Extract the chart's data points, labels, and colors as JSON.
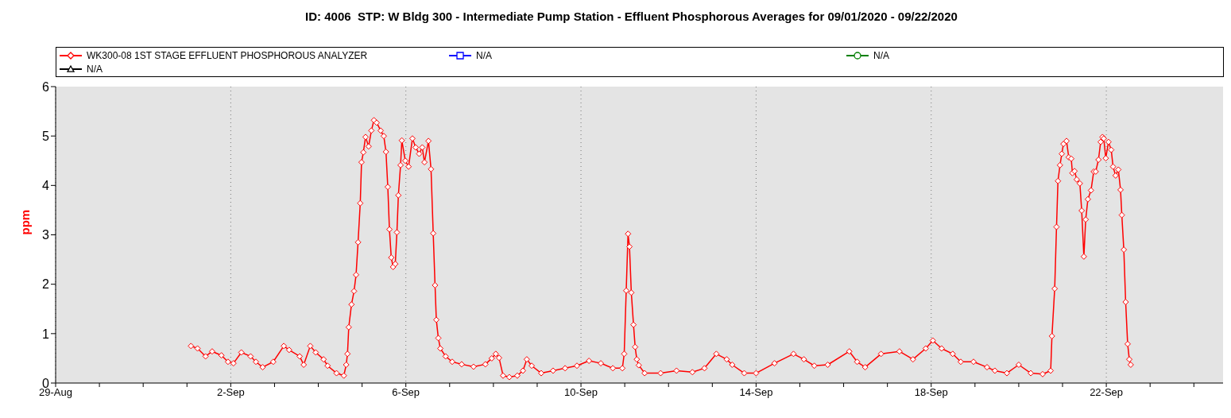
{
  "chart_data": {
    "type": "line",
    "title": "ID: 4006  STP: W Bldg 300 - Intermediate Pump Station - Effluent Phosphorous Averages for 09/01/2020 - 09/22/2020",
    "ylabel": "ppm",
    "legend": "top",
    "grid": "x",
    "line_style": "solid",
    "xlim": [
      "2020-08-29",
      "2020-09-24T16:00"
    ],
    "xticks": [
      {
        "value": "2020-08-29",
        "label": "29-Aug"
      },
      {
        "value": "2020-08-30",
        "label": null
      },
      {
        "value": "2020-08-31",
        "label": null
      },
      {
        "value": "2020-09-01",
        "label": null
      },
      {
        "value": "2020-09-02",
        "label": "2-Sep"
      },
      {
        "value": "2020-09-03",
        "label": null
      },
      {
        "value": "2020-09-04",
        "label": null
      },
      {
        "value": "2020-09-05",
        "label": null
      },
      {
        "value": "2020-09-06",
        "label": "6-Sep"
      },
      {
        "value": "2020-09-07",
        "label": null
      },
      {
        "value": "2020-09-08",
        "label": null
      },
      {
        "value": "2020-09-09",
        "label": null
      },
      {
        "value": "2020-09-10",
        "label": "10-Sep"
      },
      {
        "value": "2020-09-11",
        "label": null
      },
      {
        "value": "2020-09-12",
        "label": null
      },
      {
        "value": "2020-09-13",
        "label": null
      },
      {
        "value": "2020-09-14",
        "label": "14-Sep"
      },
      {
        "value": "2020-09-15",
        "label": null
      },
      {
        "value": "2020-09-16",
        "label": null
      },
      {
        "value": "2020-09-17",
        "label": null
      },
      {
        "value": "2020-09-18",
        "label": "18-Sep"
      },
      {
        "value": "2020-09-19",
        "label": null
      },
      {
        "value": "2020-09-20",
        "label": null
      },
      {
        "value": "2020-09-21",
        "label": null
      },
      {
        "value": "2020-09-22",
        "label": "22-Sep"
      },
      {
        "value": "2020-09-23",
        "label": null
      },
      {
        "value": "2020-09-24",
        "label": null
      }
    ],
    "ylim": [
      0,
      6
    ],
    "yticks": [
      0,
      1,
      2,
      3,
      4,
      5,
      6
    ],
    "series": [
      {
        "name": "WK300-08 1ST STAGE EFFLUENT PHOSPHOROUS ANALYZER",
        "color": "#ff0000",
        "marker": "diamond",
        "x": [
          "2020-09-01T02:12",
          "2020-09-01T05:48",
          "2020-09-01T10:12",
          "2020-09-01T13:48",
          "2020-09-01T18:54",
          "2020-09-01T22:30",
          "2020-09-02T01:30",
          "2020-09-02T05:48",
          "2020-09-02T10:54",
          "2020-09-02T13:48",
          "2020-09-02T17:30",
          "2020-09-02T23:18",
          "2020-09-03T05:06",
          "2020-09-03T08:00",
          "2020-09-03T13:48",
          "2020-09-03T16:00",
          "2020-09-03T19:36",
          "2020-09-03T22:36",
          "2020-09-04T02:54",
          "2020-09-04T05:06",
          "2020-09-04T10:00",
          "2020-09-04T14:00",
          "2020-09-04T15:18",
          "2020-09-04T16:00",
          "2020-09-04T16:42",
          "2020-09-04T18:12",
          "2020-09-04T19:36",
          "2020-09-04T20:42",
          "2020-09-04T21:48",
          "2020-09-04T23:00",
          "2020-09-04T23:42",
          "2020-09-05T00:42",
          "2020-09-05T01:54",
          "2020-09-05T03:36",
          "2020-09-05T05:06",
          "2020-09-05T06:30",
          "2020-09-05T08:00",
          "2020-09-05T10:12",
          "2020-09-05T11:54",
          "2020-09-05T13:06",
          "2020-09-05T14:06",
          "2020-09-05T15:00",
          "2020-09-05T16:00",
          "2020-09-05T17:00",
          "2020-09-05T18:12",
          "2020-09-05T19:06",
          "2020-09-05T19:54",
          "2020-09-05T21:06",
          "2020-09-05T21:48",
          "2020-09-05T23:42",
          "2020-09-06T01:30",
          "2020-09-06T03:36",
          "2020-09-06T05:24",
          "2020-09-06T07:18",
          "2020-09-06T09:00",
          "2020-09-06T10:12",
          "2020-09-06T12:24",
          "2020-09-06T13:48",
          "2020-09-06T15:00",
          "2020-09-06T16:00",
          "2020-09-06T16:42",
          "2020-09-06T17:48",
          "2020-09-06T18:54",
          "2020-09-06T21:48",
          "2020-09-07T01:24",
          "2020-09-07T06:36",
          "2020-09-07T13:06",
          "2020-09-07T19:36",
          "2020-09-07T23:06",
          "2020-09-08T01:18",
          "2020-09-08T03:06",
          "2020-09-08T05:18",
          "2020-09-08T08:42",
          "2020-09-08T13:06",
          "2020-09-08T16:12",
          "2020-09-08T18:18",
          "2020-09-08T21:00",
          "2020-09-09T02:12",
          "2020-09-09T08:42",
          "2020-09-09T15:18",
          "2020-09-09T21:48",
          "2020-09-10T04:24",
          "2020-09-10T10:54",
          "2020-09-10T17:30",
          "2020-09-10T22:42",
          "2020-09-10T23:42",
          "2020-09-11T00:48",
          "2020-09-11T01:48",
          "2020-09-11T02:36",
          "2020-09-11T03:36",
          "2020-09-11T04:48",
          "2020-09-11T05:42",
          "2020-09-11T06:36",
          "2020-09-11T07:42",
          "2020-09-11T10:54",
          "2020-09-11T19:42",
          "2020-09-12T04:24",
          "2020-09-12T13:06",
          "2020-09-12T19:42",
          "2020-09-13T02:12",
          "2020-09-13T07:54",
          "2020-09-13T10:54",
          "2020-09-13T17:30",
          "2020-09-14T00:00",
          "2020-09-14T10:06",
          "2020-09-14T20:30",
          "2020-09-15T02:12",
          "2020-09-15T07:54",
          "2020-09-15T15:18",
          "2020-09-16T03:06",
          "2020-09-16T07:24",
          "2020-09-16T11:48",
          "2020-09-16T20:30",
          "2020-09-17T06:36",
          "2020-09-17T14:00",
          "2020-09-17T21:00",
          "2020-09-18T00:54",
          "2020-09-18T05:42",
          "2020-09-18T11:48",
          "2020-09-18T16:12",
          "2020-09-18T23:12",
          "2020-09-19T06:36",
          "2020-09-19T10:54",
          "2020-09-19T17:30",
          "2020-09-20T00:00",
          "2020-09-20T06:36",
          "2020-09-20T13:06",
          "2020-09-20T17:30",
          "2020-09-20T18:12",
          "2020-09-20T19:42",
          "2020-09-20T20:42",
          "2020-09-20T21:30",
          "2020-09-20T22:36",
          "2020-09-20T23:36",
          "2020-09-21T00:30",
          "2020-09-21T02:12",
          "2020-09-21T03:24",
          "2020-09-21T04:48",
          "2020-09-21T05:24",
          "2020-09-21T06:36",
          "2020-09-21T07:48",
          "2020-09-21T09:30",
          "2020-09-21T10:30",
          "2020-09-21T11:42",
          "2020-09-21T12:42",
          "2020-09-21T13:54",
          "2020-09-21T15:36",
          "2020-09-21T17:06",
          "2020-09-21T18:12",
          "2020-09-21T19:42",
          "2020-09-21T20:54",
          "2020-09-21T21:54",
          "2020-09-21T22:36",
          "2020-09-21T23:42",
          "2020-09-22T01:12",
          "2020-09-22T02:42",
          "2020-09-22T03:42",
          "2020-09-22T05:06",
          "2020-09-22T06:36",
          "2020-09-22T07:48",
          "2020-09-22T08:30",
          "2020-09-22T09:36",
          "2020-09-22T10:36",
          "2020-09-22T11:42",
          "2020-09-22T12:36",
          "2020-09-22T13:24"
        ],
        "values": [
          0.75,
          0.7,
          0.54,
          0.64,
          0.56,
          0.43,
          0.4,
          0.62,
          0.54,
          0.43,
          0.32,
          0.43,
          0.75,
          0.67,
          0.54,
          0.37,
          0.75,
          0.62,
          0.48,
          0.35,
          0.2,
          0.15,
          0.37,
          0.59,
          1.13,
          1.59,
          1.86,
          2.19,
          2.85,
          3.64,
          4.47,
          4.67,
          4.98,
          4.79,
          5.11,
          5.32,
          5.27,
          5.11,
          5.0,
          4.68,
          3.97,
          3.11,
          2.54,
          2.35,
          2.41,
          3.05,
          3.8,
          4.41,
          4.91,
          4.5,
          4.38,
          4.95,
          4.77,
          4.64,
          4.77,
          4.47,
          4.9,
          4.33,
          3.03,
          1.98,
          1.28,
          0.91,
          0.7,
          0.54,
          0.43,
          0.38,
          0.33,
          0.38,
          0.5,
          0.59,
          0.51,
          0.15,
          0.12,
          0.15,
          0.25,
          0.48,
          0.35,
          0.2,
          0.25,
          0.3,
          0.35,
          0.45,
          0.4,
          0.3,
          0.3,
          0.59,
          1.87,
          3.02,
          2.76,
          1.83,
          1.18,
          0.73,
          0.48,
          0.36,
          0.2,
          0.2,
          0.25,
          0.22,
          0.3,
          0.59,
          0.48,
          0.37,
          0.2,
          0.2,
          0.4,
          0.59,
          0.48,
          0.35,
          0.37,
          0.64,
          0.43,
          0.32,
          0.59,
          0.64,
          0.48,
          0.7,
          0.86,
          0.7,
          0.59,
          0.43,
          0.43,
          0.32,
          0.25,
          0.2,
          0.37,
          0.2,
          0.18,
          0.25,
          0.95,
          1.91,
          3.16,
          4.09,
          4.41,
          4.64,
          4.84,
          4.9,
          4.57,
          4.54,
          4.25,
          4.29,
          4.12,
          4.04,
          3.49,
          2.56,
          3.31,
          3.72,
          3.9,
          4.28,
          4.28,
          4.52,
          4.88,
          4.98,
          4.95,
          4.55,
          4.88,
          4.72,
          4.38,
          4.2,
          4.32,
          3.91,
          3.4,
          2.7,
          1.64,
          0.79,
          0.48,
          0.37
        ]
      },
      {
        "name": "N/A",
        "color": "#0000ff",
        "marker": "square"
      },
      {
        "name": "N/A",
        "color": "#008000",
        "marker": "circle"
      },
      {
        "name": "N/A",
        "color": "#000000",
        "marker": "triangle"
      }
    ]
  }
}
